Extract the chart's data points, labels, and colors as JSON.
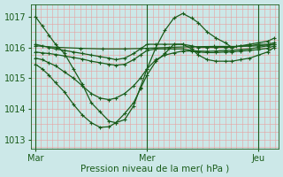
{
  "bg_color": "#cce8e8",
  "grid_color_minor": "#e8a0a0",
  "grid_color_major": "#e8a0a0",
  "line_color": "#1a5c1a",
  "xlabel": "Pression niveau de la mer( hPa )",
  "xtick_labels": [
    "Mar",
    "Mer",
    "Jeu"
  ],
  "xtick_positions": [
    0.0,
    0.5,
    1.0
  ],
  "ytick_labels": [
    "1013",
    "1014",
    "1015",
    "1016",
    "1017"
  ],
  "ylim": [
    1012.7,
    1017.4
  ],
  "xlim": [
    -0.02,
    1.09
  ],
  "vlines": [
    0.0,
    0.5,
    1.0
  ],
  "lines": [
    {
      "x": [
        0.0,
        0.03,
        0.06,
        0.09,
        0.13,
        0.17,
        0.21,
        0.25,
        0.29,
        0.33,
        0.36,
        0.4,
        0.44,
        0.47,
        0.5,
        0.54,
        0.58,
        0.62,
        0.66,
        0.7,
        0.73,
        0.77,
        0.81,
        0.85,
        0.88,
        0.92,
        0.96,
        1.0,
        1.04,
        1.07
      ],
      "y": [
        1017.0,
        1016.7,
        1016.4,
        1016.1,
        1015.8,
        1015.3,
        1014.8,
        1014.2,
        1013.9,
        1013.6,
        1013.55,
        1013.65,
        1014.1,
        1014.7,
        1015.3,
        1016.0,
        1016.55,
        1016.95,
        1017.1,
        1016.95,
        1016.8,
        1016.5,
        1016.3,
        1016.15,
        1016.0,
        1016.05,
        1016.1,
        1016.15,
        1016.2,
        1016.3
      ]
    },
    {
      "x": [
        0.0,
        0.03,
        0.06,
        0.09,
        0.13,
        0.17,
        0.21,
        0.25,
        0.29,
        0.33,
        0.36,
        0.4,
        0.44,
        0.47,
        0.5,
        0.54,
        0.58,
        0.62,
        0.66,
        0.7,
        0.73,
        0.77,
        0.81,
        0.85,
        0.88,
        0.92,
        0.96,
        1.0,
        1.04,
        1.07
      ],
      "y": [
        1016.1,
        1016.05,
        1016.0,
        1015.95,
        1015.9,
        1015.85,
        1015.8,
        1015.75,
        1015.7,
        1015.65,
        1015.6,
        1015.65,
        1015.8,
        1015.95,
        1016.1,
        1016.1,
        1016.1,
        1016.1,
        1016.1,
        1016.05,
        1016.0,
        1016.0,
        1016.0,
        1016.0,
        1016.0,
        1016.05,
        1016.05,
        1016.1,
        1016.1,
        1016.15
      ]
    },
    {
      "x": [
        0.0,
        0.03,
        0.06,
        0.09,
        0.13,
        0.17,
        0.21,
        0.25,
        0.29,
        0.33,
        0.36,
        0.4,
        0.44,
        0.47,
        0.5,
        0.54,
        0.58,
        0.62,
        0.66,
        0.7,
        0.73,
        0.77,
        0.81,
        0.85,
        0.88,
        0.92,
        0.96,
        1.0,
        1.04,
        1.07
      ],
      "y": [
        1015.85,
        1015.82,
        1015.8,
        1015.77,
        1015.72,
        1015.67,
        1015.62,
        1015.55,
        1015.5,
        1015.45,
        1015.42,
        1015.45,
        1015.6,
        1015.75,
        1015.9,
        1015.95,
        1015.95,
        1015.95,
        1015.95,
        1015.9,
        1015.88,
        1015.87,
        1015.88,
        1015.9,
        1015.9,
        1015.93,
        1015.95,
        1016.0,
        1016.05,
        1016.1
      ]
    },
    {
      "x": [
        0.0,
        0.03,
        0.06,
        0.09,
        0.13,
        0.17,
        0.21,
        0.25,
        0.29,
        0.33,
        0.36,
        0.4,
        0.44,
        0.47,
        0.5,
        0.54,
        0.58,
        0.62,
        0.66,
        0.7,
        0.73,
        0.77,
        0.81,
        0.85,
        0.88,
        0.92,
        0.96,
        1.0,
        1.04,
        1.07
      ],
      "y": [
        1015.65,
        1015.6,
        1015.5,
        1015.4,
        1015.2,
        1015.0,
        1014.75,
        1014.5,
        1014.35,
        1014.3,
        1014.35,
        1014.5,
        1014.75,
        1015.0,
        1015.3,
        1015.6,
        1015.75,
        1015.82,
        1015.88,
        1015.88,
        1015.85,
        1015.83,
        1015.83,
        1015.85,
        1015.85,
        1015.88,
        1015.9,
        1015.93,
        1015.97,
        1016.05
      ]
    },
    {
      "x": [
        0.0,
        0.03,
        0.06,
        0.09,
        0.13,
        0.17,
        0.21,
        0.25,
        0.29,
        0.33,
        0.36,
        0.4,
        0.44,
        0.47,
        0.5,
        0.54,
        0.58,
        0.62,
        0.66,
        0.7,
        0.73,
        0.77,
        0.81,
        0.85,
        0.88,
        0.92,
        0.96,
        1.0,
        1.04,
        1.07
      ],
      "y": [
        1015.45,
        1015.3,
        1015.1,
        1014.85,
        1014.55,
        1014.15,
        1013.8,
        1013.55,
        1013.4,
        1013.42,
        1013.55,
        1013.85,
        1014.2,
        1014.65,
        1015.1,
        1015.55,
        1015.8,
        1016.1,
        1016.1,
        1015.95,
        1015.75,
        1015.6,
        1015.55,
        1015.55,
        1015.55,
        1015.6,
        1015.65,
        1015.75,
        1015.85,
        1016.0
      ]
    },
    {
      "x": [
        0.0,
        0.1,
        0.2,
        0.3,
        0.4,
        0.5,
        0.6,
        0.7,
        0.8,
        0.9,
        1.0,
        1.07
      ],
      "y": [
        1016.05,
        1016.0,
        1015.97,
        1015.95,
        1015.95,
        1015.97,
        1016.0,
        1016.02,
        1016.03,
        1016.03,
        1016.05,
        1016.1
      ]
    }
  ]
}
